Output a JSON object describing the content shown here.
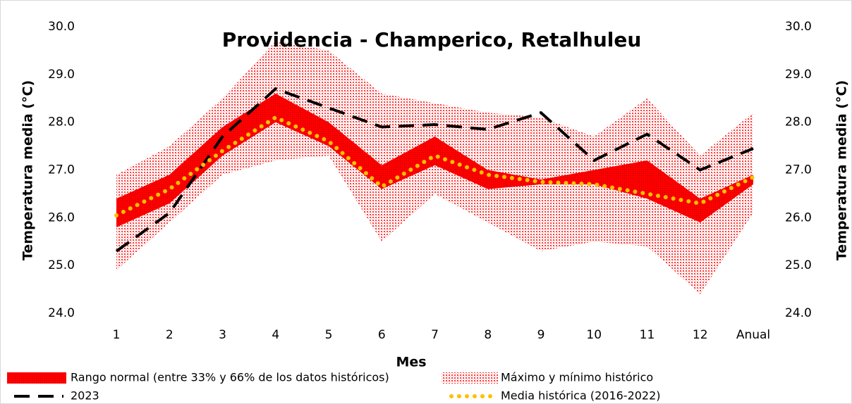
{
  "chart_data": {
    "type": "line",
    "title": "Providencia - Champerico, Retalhuleu",
    "x_label": "Mes",
    "y_label": "Temperatura media (°C)",
    "y2_label": "Temperatura media (°C)",
    "categories": [
      "1",
      "2",
      "3",
      "4",
      "5",
      "6",
      "7",
      "8",
      "9",
      "10",
      "11",
      "12",
      "Anual"
    ],
    "ylim": [
      24,
      30
    ],
    "yticks": [
      {
        "value": 24,
        "label": "24.0"
      },
      {
        "value": 25,
        "label": "25.0"
      },
      {
        "value": 26,
        "label": "26.0"
      },
      {
        "value": 27,
        "label": "27.0"
      },
      {
        "value": 28,
        "label": "28.0"
      },
      {
        "value": 29,
        "label": "29.0"
      },
      {
        "value": 30,
        "label": "30.0"
      }
    ],
    "y2lim": [
      24,
      30
    ],
    "y2ticks": [
      {
        "value": 24,
        "label": "24.0"
      },
      {
        "value": 25,
        "label": "25.0"
      },
      {
        "value": 26,
        "label": "26.0"
      },
      {
        "value": 27,
        "label": "27.0"
      },
      {
        "value": 28,
        "label": "28.0"
      },
      {
        "value": 29,
        "label": "29.0"
      },
      {
        "value": 30,
        "label": "30.0"
      }
    ],
    "grid": false,
    "bands": [
      {
        "name": "Máximo y mínimo histórico",
        "color": "#ff3b3b",
        "high": [
          26.9,
          27.5,
          28.5,
          29.7,
          29.5,
          28.6,
          28.4,
          28.2,
          28.1,
          27.7,
          28.5,
          27.3,
          28.2
        ],
        "low": [
          24.9,
          25.9,
          26.9,
          27.2,
          27.3,
          25.5,
          26.5,
          25.9,
          25.3,
          25.5,
          25.4,
          24.4,
          26.1
        ]
      },
      {
        "name": "Rango normal (entre 33% y 66% de los datos históricos)",
        "color": "#ff0000",
        "high": [
          26.4,
          26.9,
          27.9,
          28.6,
          28.0,
          27.1,
          27.7,
          27.0,
          26.8,
          27.0,
          27.2,
          26.4,
          26.9
        ],
        "low": [
          25.8,
          26.3,
          27.3,
          28.0,
          27.5,
          26.6,
          27.1,
          26.6,
          26.7,
          26.7,
          26.4,
          25.9,
          26.7
        ]
      }
    ],
    "series": [
      {
        "name": "2023",
        "color": "#000000",
        "style": "dashed",
        "values": [
          25.3,
          26.1,
          27.7,
          28.7,
          28.3,
          27.9,
          27.95,
          27.85,
          28.2,
          27.2,
          27.75,
          27.0,
          27.45
        ]
      },
      {
        "name": "Media histórica (2016-2022)",
        "color": "#ffc000",
        "style": "dotted",
        "values": [
          26.05,
          26.6,
          27.4,
          28.1,
          27.6,
          26.65,
          27.3,
          26.9,
          26.75,
          26.7,
          26.5,
          26.3,
          26.85
        ]
      }
    ]
  }
}
